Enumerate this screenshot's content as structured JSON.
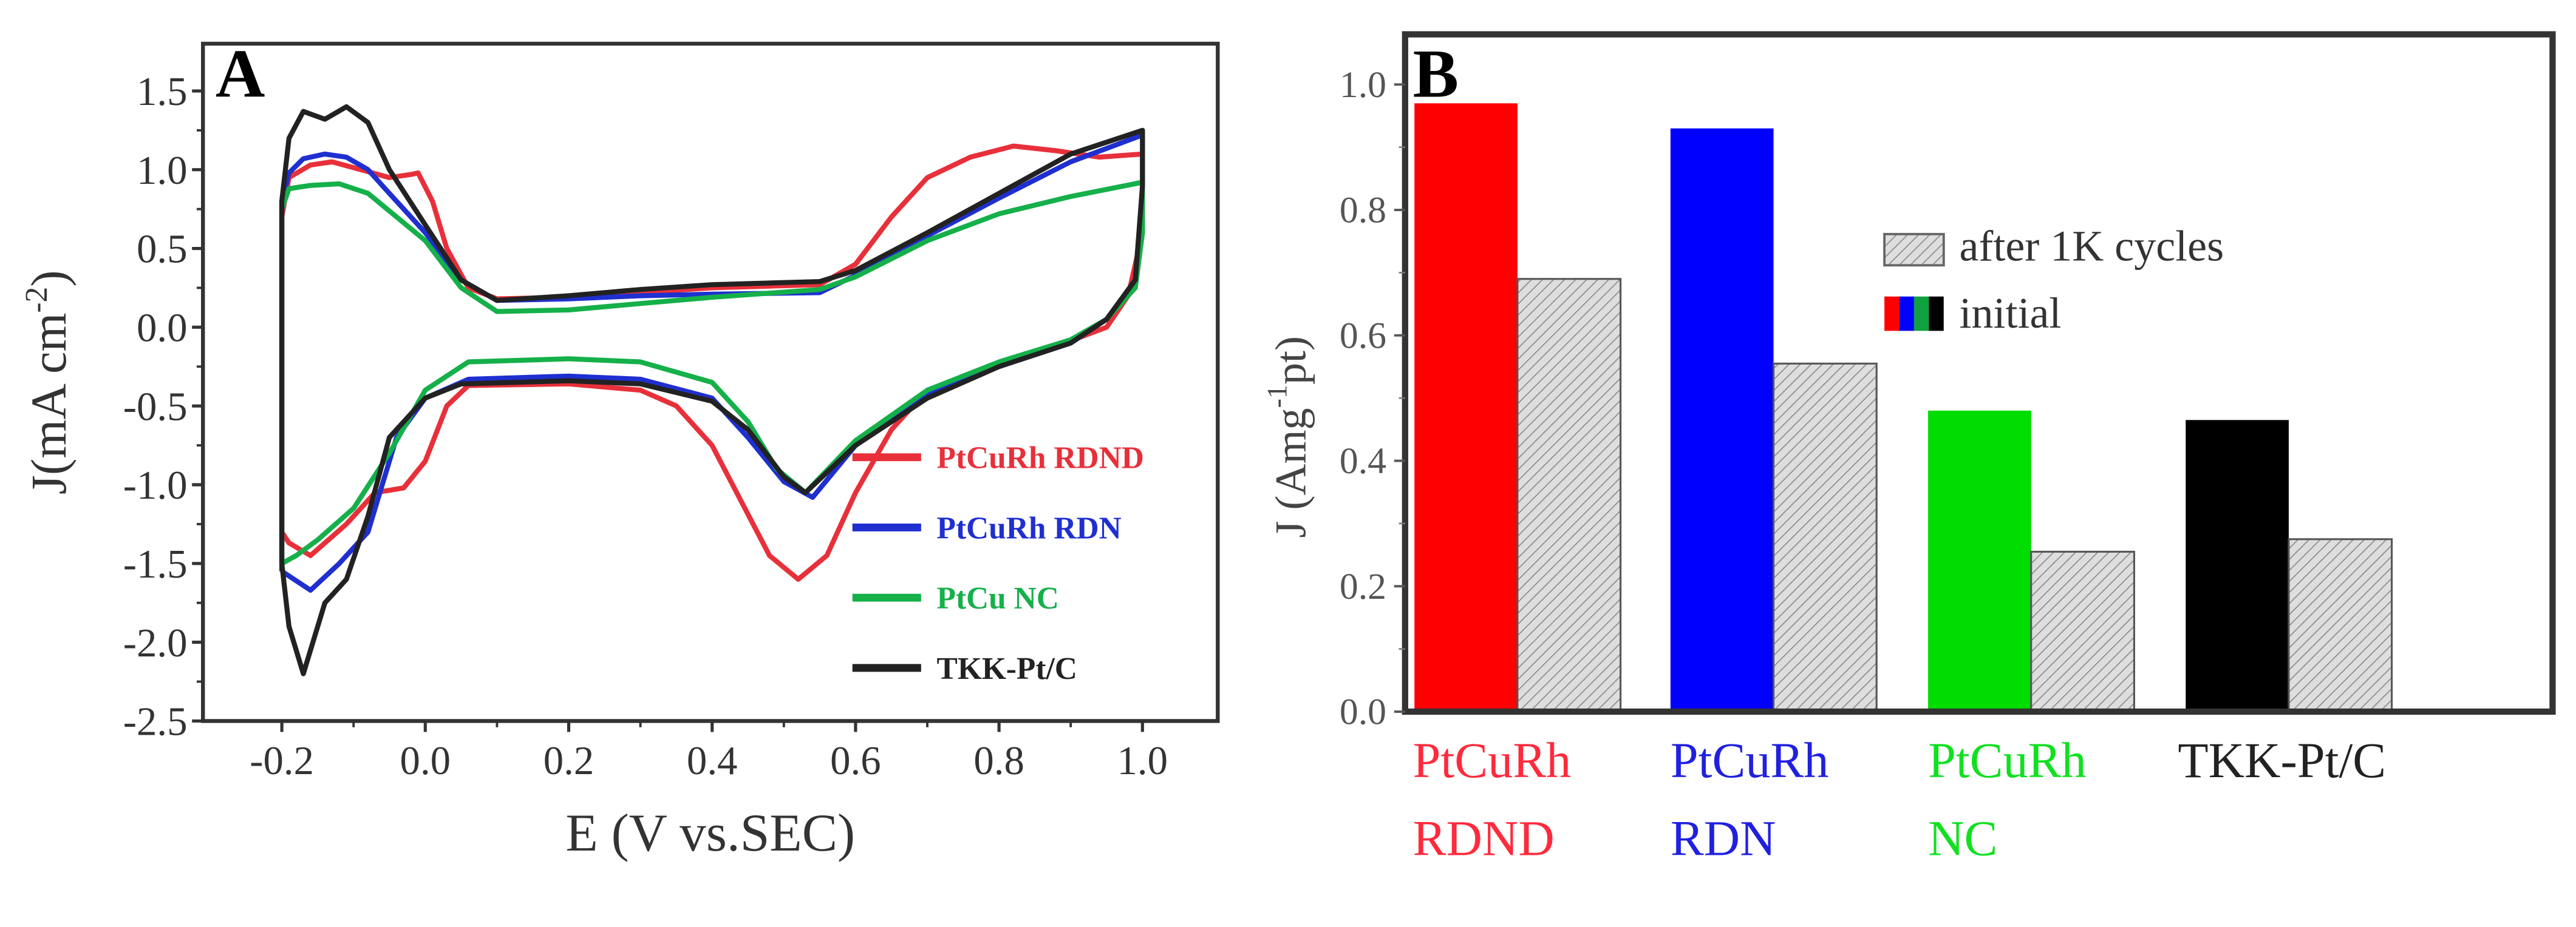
{
  "chart_data": [
    {
      "type": "line",
      "panel_label": "A",
      "xlabel": "E (V vs.SEC)",
      "ylabel": "J(mA cm",
      "ylabel_sup": "-2",
      "ylabel_end": ")",
      "xlim": [
        -0.31,
        1.105
      ],
      "ylim": [
        -2.5,
        1.8
      ],
      "xticks": [
        "-0.2",
        "0.0",
        "0.2",
        "0.4",
        "0.6",
        "0.8",
        "1.0"
      ],
      "xtick_values": [
        -0.2,
        0,
        0.2,
        0.4,
        0.6,
        0.8,
        1.0
      ],
      "yticks": [
        "1.5",
        "1.0",
        "0.5",
        "0.0",
        "-0.5",
        "-1.0",
        "-1.5",
        "-2.0",
        "-2.5"
      ],
      "ytick_values": [
        1.5,
        1.0,
        0.5,
        0,
        -0.5,
        -1.0,
        -1.5,
        -2.0,
        -2.5
      ],
      "legend_placement": "bottom-right",
      "series": [
        {
          "name": "PtCuRh RDND",
          "color": "#e8303a",
          "points": [
            [
              -0.2,
              -1.3
            ],
            [
              -0.2,
              0.7
            ],
            [
              -0.19,
              0.95
            ],
            [
              -0.16,
              1.03
            ],
            [
              -0.13,
              1.05
            ],
            [
              -0.09,
              1.0
            ],
            [
              -0.05,
              0.95
            ],
            [
              -0.02,
              0.97
            ],
            [
              -0.01,
              0.98
            ],
            [
              0.01,
              0.8
            ],
            [
              0.03,
              0.5
            ],
            [
              0.06,
              0.25
            ],
            [
              0.1,
              0.18
            ],
            [
              0.2,
              0.19
            ],
            [
              0.3,
              0.22
            ],
            [
              0.4,
              0.25
            ],
            [
              0.55,
              0.27
            ],
            [
              0.6,
              0.4
            ],
            [
              0.65,
              0.7
            ],
            [
              0.7,
              0.95
            ],
            [
              0.76,
              1.08
            ],
            [
              0.82,
              1.15
            ],
            [
              0.88,
              1.12
            ],
            [
              0.94,
              1.08
            ],
            [
              1.0,
              1.1
            ],
            [
              1.0,
              0.6
            ],
            [
              0.98,
              0.2
            ],
            [
              0.95,
              0.0
            ],
            [
              0.88,
              -0.12
            ],
            [
              0.8,
              -0.25
            ],
            [
              0.7,
              -0.4
            ],
            [
              0.65,
              -0.65
            ],
            [
              0.6,
              -1.05
            ],
            [
              0.56,
              -1.45
            ],
            [
              0.52,
              -1.6
            ],
            [
              0.48,
              -1.45
            ],
            [
              0.44,
              -1.1
            ],
            [
              0.4,
              -0.75
            ],
            [
              0.35,
              -0.5
            ],
            [
              0.3,
              -0.4
            ],
            [
              0.2,
              -0.36
            ],
            [
              0.06,
              -0.37
            ],
            [
              0.03,
              -0.5
            ],
            [
              0.0,
              -0.85
            ],
            [
              -0.03,
              -1.02
            ],
            [
              -0.07,
              -1.05
            ],
            [
              -0.11,
              -1.25
            ],
            [
              -0.16,
              -1.45
            ],
            [
              -0.19,
              -1.37
            ],
            [
              -0.2,
              -1.3
            ]
          ]
        },
        {
          "name": "PtCuRh  RDN",
          "color": "#1f2fd0",
          "points": [
            [
              -0.2,
              -1.55
            ],
            [
              -0.2,
              0.8
            ],
            [
              -0.19,
              0.98
            ],
            [
              -0.17,
              1.07
            ],
            [
              -0.14,
              1.1
            ],
            [
              -0.11,
              1.08
            ],
            [
              -0.08,
              1.0
            ],
            [
              -0.05,
              0.85
            ],
            [
              0.0,
              0.6
            ],
            [
              0.05,
              0.3
            ],
            [
              0.1,
              0.17
            ],
            [
              0.2,
              0.18
            ],
            [
              0.3,
              0.2
            ],
            [
              0.4,
              0.21
            ],
            [
              0.55,
              0.22
            ],
            [
              0.6,
              0.33
            ],
            [
              0.7,
              0.58
            ],
            [
              0.8,
              0.82
            ],
            [
              0.9,
              1.05
            ],
            [
              1.0,
              1.22
            ],
            [
              1.0,
              0.8
            ],
            [
              0.99,
              0.3
            ],
            [
              0.95,
              0.05
            ],
            [
              0.9,
              -0.1
            ],
            [
              0.8,
              -0.25
            ],
            [
              0.7,
              -0.42
            ],
            [
              0.6,
              -0.75
            ],
            [
              0.54,
              -1.08
            ],
            [
              0.5,
              -0.98
            ],
            [
              0.45,
              -0.7
            ],
            [
              0.4,
              -0.45
            ],
            [
              0.3,
              -0.33
            ],
            [
              0.2,
              -0.31
            ],
            [
              0.06,
              -0.33
            ],
            [
              0.0,
              -0.45
            ],
            [
              -0.04,
              -0.7
            ],
            [
              -0.08,
              -1.3
            ],
            [
              -0.12,
              -1.5
            ],
            [
              -0.16,
              -1.67
            ],
            [
              -0.19,
              -1.58
            ],
            [
              -0.2,
              -1.55
            ]
          ]
        },
        {
          "name": "PtCu  NC",
          "color": "#15b04a",
          "points": [
            [
              -0.2,
              -1.5
            ],
            [
              -0.2,
              0.75
            ],
            [
              -0.19,
              0.88
            ],
            [
              -0.16,
              0.9
            ],
            [
              -0.12,
              0.91
            ],
            [
              -0.08,
              0.85
            ],
            [
              -0.04,
              0.7
            ],
            [
              0.0,
              0.55
            ],
            [
              0.05,
              0.25
            ],
            [
              0.1,
              0.1
            ],
            [
              0.2,
              0.11
            ],
            [
              0.3,
              0.15
            ],
            [
              0.4,
              0.19
            ],
            [
              0.55,
              0.24
            ],
            [
              0.6,
              0.32
            ],
            [
              0.7,
              0.55
            ],
            [
              0.8,
              0.72
            ],
            [
              0.9,
              0.83
            ],
            [
              1.0,
              0.92
            ],
            [
              1.0,
              0.6
            ],
            [
              0.99,
              0.25
            ],
            [
              0.95,
              0.05
            ],
            [
              0.9,
              -0.08
            ],
            [
              0.8,
              -0.22
            ],
            [
              0.7,
              -0.4
            ],
            [
              0.6,
              -0.72
            ],
            [
              0.53,
              -1.05
            ],
            [
              0.49,
              -0.9
            ],
            [
              0.45,
              -0.6
            ],
            [
              0.4,
              -0.35
            ],
            [
              0.3,
              -0.22
            ],
            [
              0.2,
              -0.2
            ],
            [
              0.06,
              -0.22
            ],
            [
              0.0,
              -0.4
            ],
            [
              -0.05,
              -0.8
            ],
            [
              -0.1,
              -1.15
            ],
            [
              -0.15,
              -1.35
            ],
            [
              -0.18,
              -1.45
            ],
            [
              -0.2,
              -1.5
            ]
          ]
        },
        {
          "name": "TKK-Pt/C",
          "color": "#222222",
          "points": [
            [
              -0.2,
              -1.5
            ],
            [
              -0.2,
              0.8
            ],
            [
              -0.19,
              1.2
            ],
            [
              -0.17,
              1.37
            ],
            [
              -0.14,
              1.32
            ],
            [
              -0.11,
              1.4
            ],
            [
              -0.08,
              1.3
            ],
            [
              -0.05,
              1.0
            ],
            [
              0.0,
              0.65
            ],
            [
              0.05,
              0.3
            ],
            [
              0.1,
              0.17
            ],
            [
              0.2,
              0.2
            ],
            [
              0.3,
              0.24
            ],
            [
              0.4,
              0.27
            ],
            [
              0.55,
              0.29
            ],
            [
              0.6,
              0.36
            ],
            [
              0.7,
              0.6
            ],
            [
              0.8,
              0.85
            ],
            [
              0.9,
              1.1
            ],
            [
              1.0,
              1.25
            ],
            [
              1.0,
              0.9
            ],
            [
              0.99,
              0.3
            ],
            [
              0.95,
              0.05
            ],
            [
              0.9,
              -0.1
            ],
            [
              0.8,
              -0.25
            ],
            [
              0.7,
              -0.45
            ],
            [
              0.6,
              -0.75
            ],
            [
              0.53,
              -1.05
            ],
            [
              0.5,
              -0.95
            ],
            [
              0.45,
              -0.65
            ],
            [
              0.4,
              -0.47
            ],
            [
              0.3,
              -0.36
            ],
            [
              0.2,
              -0.34
            ],
            [
              0.05,
              -0.36
            ],
            [
              0.0,
              -0.45
            ],
            [
              -0.05,
              -0.7
            ],
            [
              -0.08,
              -1.2
            ],
            [
              -0.11,
              -1.6
            ],
            [
              -0.14,
              -1.75
            ],
            [
              -0.17,
              -2.2
            ],
            [
              -0.19,
              -1.9
            ],
            [
              -0.2,
              -1.5
            ]
          ]
        }
      ]
    },
    {
      "type": "bar",
      "panel_label": "B",
      "ylabel": "J (Amg",
      "ylabel_sup": "-1",
      "ylabel_end": "pt)",
      "ylim": [
        0,
        1.08
      ],
      "yticks": [
        "0.0",
        "0.2",
        "0.4",
        "0.6",
        "0.8",
        "1.0"
      ],
      "ytick_values": [
        0,
        0.2,
        0.4,
        0.6,
        0.8,
        1.0
      ],
      "categories": [
        {
          "line1": "PtCuRh",
          "line2": "RDND",
          "color": "#ff2a3c"
        },
        {
          "line1": "PtCuRh",
          "line2": "RDN",
          "color": "#2020e0"
        },
        {
          "line1": "PtCuRh",
          "line2": "NC",
          "color": "#10e020"
        },
        {
          "line1": "TKK-Pt/C",
          "line2": "",
          "color": "#222222"
        }
      ],
      "series": [
        {
          "name": "initial",
          "values": [
            0.97,
            0.93,
            0.48,
            0.465
          ],
          "colors": [
            "#ff0000",
            "#0000ff",
            "#00dd00",
            "#000000"
          ]
        },
        {
          "name": "after 1K cycles",
          "values": [
            0.69,
            0.555,
            0.255,
            0.275
          ],
          "color": "#d8d8d8"
        }
      ],
      "legend_placement": "top-right",
      "legend_swatch_colors": [
        "#ff0000",
        "#0000ff",
        "#10a040",
        "#000000"
      ]
    }
  ]
}
